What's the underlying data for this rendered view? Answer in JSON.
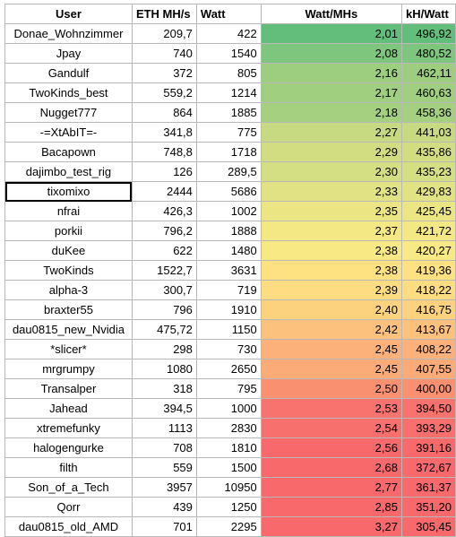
{
  "headers": [
    "User",
    "ETH MH/s",
    "Watt",
    "Watt/MHs",
    "kH/Watt"
  ],
  "selected_user": "tixomixo",
  "rows": [
    {
      "user": "Donae_Wohnzimmer",
      "eth": "209,7",
      "watt": "422",
      "wpm": "2,01",
      "khw": "496,92",
      "color_wpm": "#63be7b",
      "color_khw": "#63be7b"
    },
    {
      "user": "Jpay",
      "eth": "740",
      "watt": "1540",
      "wpm": "2,08",
      "khw": "480,52",
      "color_wpm": "#7ec57d",
      "color_khw": "#7ec57d"
    },
    {
      "user": "Gandulf",
      "eth": "372",
      "watt": "805",
      "wpm": "2,16",
      "khw": "462,11",
      "color_wpm": "#9dce7f",
      "color_khw": "#9dce7f"
    },
    {
      "user": "TwoKinds_best",
      "eth": "559,2",
      "watt": "1214",
      "wpm": "2,17",
      "khw": "460,63",
      "color_wpm": "#a0cf7f",
      "color_khw": "#a0cf7f"
    },
    {
      "user": "Nugget777",
      "eth": "864",
      "watt": "1885",
      "wpm": "2,18",
      "khw": "458,36",
      "color_wpm": "#a5d07f",
      "color_khw": "#a5d07f"
    },
    {
      "user": "-=XtAbIT=-",
      "eth": "341,8",
      "watt": "775",
      "wpm": "2,27",
      "khw": "441,03",
      "color_wpm": "#c8da81",
      "color_khw": "#c8da81"
    },
    {
      "user": "Bacapown",
      "eth": "748,8",
      "watt": "1718",
      "wpm": "2,29",
      "khw": "435,86",
      "color_wpm": "#d2dd82",
      "color_khw": "#d2dd82"
    },
    {
      "user": "dajimbo_test_rig",
      "eth": "126",
      "watt": "289,5",
      "wpm": "2,30",
      "khw": "435,23",
      "color_wpm": "#d4de82",
      "color_khw": "#d4de82"
    },
    {
      "user": "tixomixo",
      "eth": "2444",
      "watt": "5686",
      "wpm": "2,33",
      "khw": "429,83",
      "color_wpm": "#e1e283",
      "color_khw": "#e1e283"
    },
    {
      "user": "nfrai",
      "eth": "426,3",
      "watt": "1002",
      "wpm": "2,35",
      "khw": "425,45",
      "color_wpm": "#ebe583",
      "color_khw": "#ebe583"
    },
    {
      "user": "porkii",
      "eth": "796,2",
      "watt": "1888",
      "wpm": "2,37",
      "khw": "421,72",
      "color_wpm": "#f4e884",
      "color_khw": "#f4e884"
    },
    {
      "user": "duKee",
      "eth": "622",
      "watt": "1480",
      "wpm": "2,38",
      "khw": "420,27",
      "color_wpm": "#f8e984",
      "color_khw": "#f8e984"
    },
    {
      "user": "TwoKinds",
      "eth": "1522,7",
      "watt": "3631",
      "wpm": "2,38",
      "khw": "419,36",
      "color_wpm": "#fee282",
      "color_khw": "#fee282"
    },
    {
      "user": "alpha-3",
      "eth": "300,7",
      "watt": "719",
      "wpm": "2,39",
      "khw": "418,22",
      "color_wpm": "#fedc81",
      "color_khw": "#fedc81"
    },
    {
      "user": "braxter55",
      "eth": "796",
      "watt": "1910",
      "wpm": "2,40",
      "khw": "416,75",
      "color_wpm": "#fdd27f",
      "color_khw": "#fdd27f"
    },
    {
      "user": "dau0815_new_Nvidia",
      "eth": "475,72",
      "watt": "1150",
      "wpm": "2,42",
      "khw": "413,67",
      "color_wpm": "#fcc17c",
      "color_khw": "#fcc17c"
    },
    {
      "user": "*slicer*",
      "eth": "298",
      "watt": "730",
      "wpm": "2,45",
      "khw": "408,22",
      "color_wpm": "#fbb179",
      "color_khw": "#fbb179"
    },
    {
      "user": "mrgrumpy",
      "eth": "1080",
      "watt": "2650",
      "wpm": "2,45",
      "khw": "407,55",
      "color_wpm": "#fbab78",
      "color_khw": "#fbab78"
    },
    {
      "user": "Transalper",
      "eth": "318",
      "watt": "795",
      "wpm": "2,50",
      "khw": "400,00",
      "color_wpm": "#f9906f",
      "color_khw": "#f9906f"
    },
    {
      "user": "Jahead",
      "eth": "394,5",
      "watt": "1000",
      "wpm": "2,53",
      "khw": "394,50",
      "color_wpm": "#f8736e",
      "color_khw": "#f8736e"
    },
    {
      "user": "xtremefunky",
      "eth": "1113",
      "watt": "2830",
      "wpm": "2,54",
      "khw": "393,29",
      "color_wpm": "#f8706d",
      "color_khw": "#f8706d"
    },
    {
      "user": "halogengurke",
      "eth": "708",
      "watt": "1810",
      "wpm": "2,56",
      "khw": "391,16",
      "color_wpm": "#f8696b",
      "color_khw": "#f8696b"
    },
    {
      "user": "filth",
      "eth": "559",
      "watt": "1500",
      "wpm": "2,68",
      "khw": "372,67",
      "color_wpm": "#f8696b",
      "color_khw": "#f8696b"
    },
    {
      "user": "Son_of_a_Tech",
      "eth": "3957",
      "watt": "10950",
      "wpm": "2,77",
      "khw": "361,37",
      "color_wpm": "#f8696b",
      "color_khw": "#f8696b"
    },
    {
      "user": "Qorr",
      "eth": "439",
      "watt": "1250",
      "wpm": "2,85",
      "khw": "351,20",
      "color_wpm": "#f8696b",
      "color_khw": "#f8696b"
    },
    {
      "user": "dau0815_old_AMD",
      "eth": "701",
      "watt": "2295",
      "wpm": "3,27",
      "khw": "305,45",
      "color_wpm": "#f8696b",
      "color_khw": "#f8696b"
    }
  ]
}
